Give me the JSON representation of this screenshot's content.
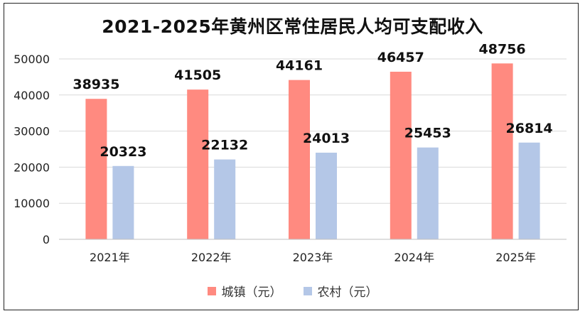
{
  "chart_data": {
    "type": "bar",
    "title": "2021-2025年黄州区常住居民人均可支配收入",
    "categories": [
      "2021年",
      "2022年",
      "2023年",
      "2024年",
      "2025年"
    ],
    "series": [
      {
        "name": "城镇（元）",
        "color": "#ff8a80",
        "values": [
          38935,
          41505,
          44161,
          46457,
          48756
        ]
      },
      {
        "name": "农村（元）",
        "color": "#b4c7e7",
        "values": [
          20323,
          22132,
          24013,
          25453,
          26814
        ]
      }
    ],
    "ylim": [
      0,
      50000
    ],
    "yticks": [
      "0",
      "10000",
      "20000",
      "30000",
      "40000",
      "50000"
    ],
    "grid": true,
    "legend_position": "bottom"
  }
}
